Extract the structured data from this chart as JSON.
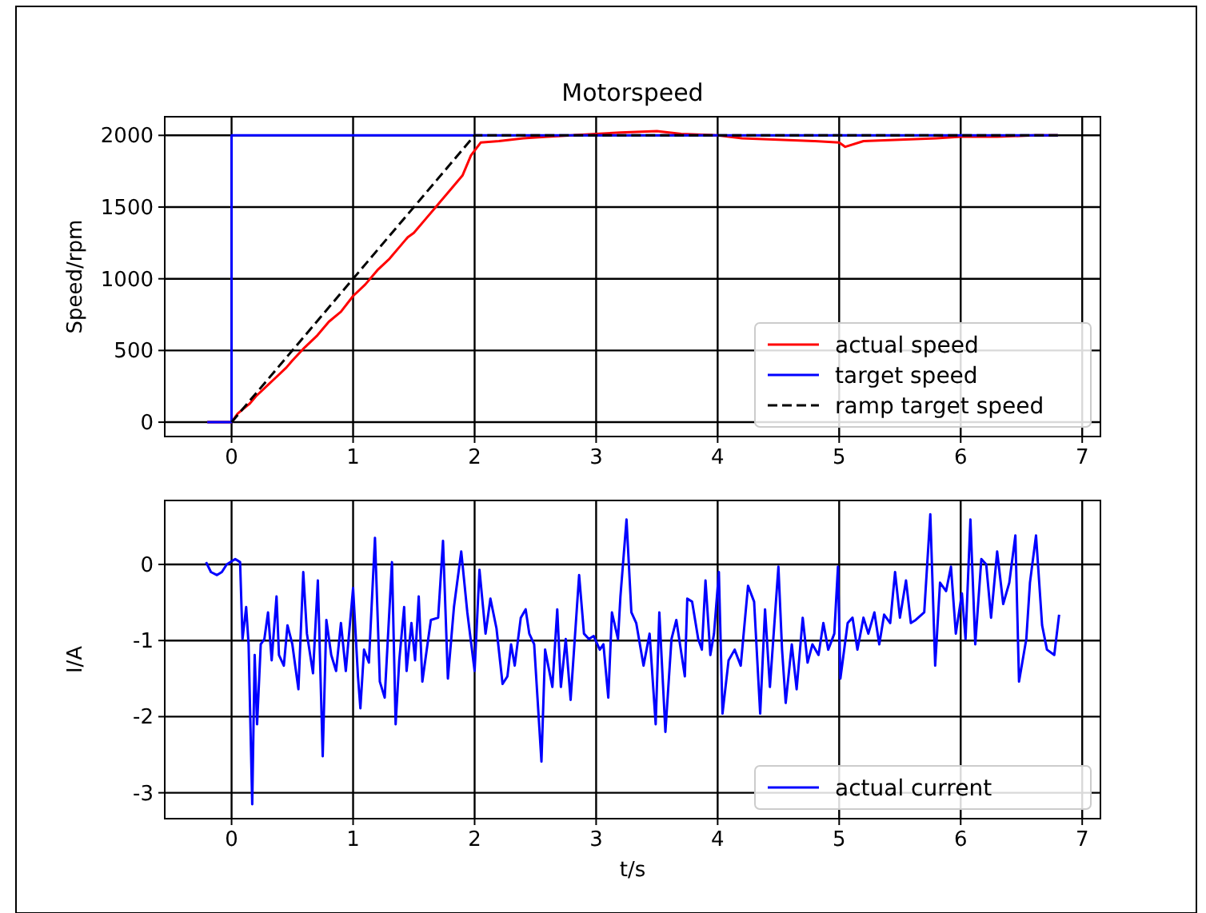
{
  "chart_data": [
    {
      "type": "line",
      "title": "Motorspeed",
      "ylabel": "Speed/rpm",
      "xlim": [
        -0.55,
        7.15
      ],
      "xticks": [
        0,
        1,
        2,
        3,
        4,
        5,
        6,
        7
      ],
      "ylim": [
        -100,
        2130
      ],
      "yticks": [
        0,
        500,
        1000,
        1500,
        2000
      ],
      "grid": true,
      "legend": "bottom right",
      "series": [
        {
          "name": "actual speed",
          "color": "#ff0000",
          "x": [
            -0.2,
            0,
            0.05,
            0.15,
            0.2,
            0.3,
            0.35,
            0.45,
            0.5,
            0.6,
            0.7,
            0.8,
            0.9,
            1.0,
            1.1,
            1.2,
            1.3,
            1.4,
            1.45,
            1.5,
            1.6,
            1.7,
            1.8,
            1.9,
            1.97,
            2.05,
            2.2,
            2.4,
            2.6,
            2.8,
            3.0,
            3.2,
            3.5,
            3.7,
            4.0,
            4.2,
            4.5,
            4.8,
            5.0,
            5.05,
            5.2,
            5.5,
            5.8,
            6.0,
            6.3,
            6.6,
            6.8
          ],
          "values": [
            0,
            0,
            60,
            130,
            180,
            260,
            300,
            380,
            430,
            520,
            600,
            700,
            770,
            880,
            960,
            1060,
            1140,
            1240,
            1290,
            1320,
            1420,
            1520,
            1620,
            1720,
            1860,
            1950,
            1960,
            1980,
            1990,
            2000,
            2010,
            2020,
            2030,
            2010,
            2000,
            1980,
            1970,
            1960,
            1950,
            1920,
            1960,
            1970,
            1980,
            1990,
            1990,
            2000,
            2000
          ]
        },
        {
          "name": "target speed",
          "color": "#0000ff",
          "x": [
            -0.2,
            0,
            0,
            6.8
          ],
          "values": [
            0,
            0,
            2000,
            2000
          ]
        },
        {
          "name": "ramp target speed",
          "color": "#000000",
          "line_style": "dashed",
          "x": [
            0,
            2,
            6.8
          ],
          "values": [
            0,
            2000,
            2000
          ]
        }
      ]
    },
    {
      "type": "line",
      "xlabel": "t/s",
      "ylabel": "I/A",
      "xlim": [
        -0.55,
        7.15
      ],
      "xticks": [
        0,
        1,
        2,
        3,
        4,
        5,
        6,
        7
      ],
      "ylim": [
        -3.34,
        0.84
      ],
      "yticks": [
        -3,
        -2,
        -1,
        0
      ],
      "grid": true,
      "legend": "bottom right",
      "series": [
        {
          "name": "actual current",
          "color": "#0000ff",
          "x": [
            -0.21,
            -0.17,
            -0.12,
            -0.08,
            -0.04,
            0.03,
            0.07,
            0.09,
            0.12,
            0.14,
            0.17,
            0.19,
            0.21,
            0.24,
            0.27,
            0.3,
            0.33,
            0.37,
            0.39,
            0.43,
            0.46,
            0.5,
            0.55,
            0.59,
            0.62,
            0.67,
            0.71,
            0.75,
            0.78,
            0.82,
            0.86,
            0.9,
            0.94,
            1.0,
            1.04,
            1.06,
            1.09,
            1.13,
            1.18,
            1.22,
            1.26,
            1.32,
            1.35,
            1.38,
            1.42,
            1.44,
            1.48,
            1.51,
            1.54,
            1.57,
            1.6,
            1.64,
            1.7,
            1.74,
            1.78,
            1.83,
            1.89,
            1.94,
            2.0,
            2.04,
            2.09,
            2.13,
            2.18,
            2.23,
            2.27,
            2.3,
            2.33,
            2.38,
            2.42,
            2.45,
            2.49,
            2.55,
            2.58,
            2.64,
            2.68,
            2.71,
            2.75,
            2.79,
            2.86,
            2.9,
            2.94,
            2.98,
            3.03,
            3.06,
            3.1,
            3.13,
            3.18,
            3.2,
            3.25,
            3.29,
            3.33,
            3.39,
            3.44,
            3.49,
            3.52,
            3.57,
            3.62,
            3.66,
            3.73,
            3.75,
            3.79,
            3.84,
            3.87,
            3.9,
            3.94,
            3.97,
            4.01,
            4.04,
            4.09,
            4.14,
            4.19,
            4.25,
            4.3,
            4.35,
            4.39,
            4.43,
            4.5,
            4.53,
            4.56,
            4.61,
            4.65,
            4.7,
            4.74,
            4.78,
            4.83,
            4.87,
            4.91,
            4.96,
            4.99,
            5.01,
            5.07,
            5.11,
            5.15,
            5.2,
            5.24,
            5.29,
            5.33,
            5.37,
            5.42,
            5.46,
            5.5,
            5.55,
            5.59,
            5.63,
            5.7,
            5.75,
            5.79,
            5.83,
            5.88,
            5.92,
            5.96,
            6.01,
            6.04,
            6.08,
            6.12,
            6.17,
            6.21,
            6.25,
            6.3,
            6.35,
            6.4,
            6.45,
            6.48,
            6.54,
            6.57,
            6.62,
            6.67,
            6.71,
            6.77,
            6.81
          ],
          "values": [
            0.03,
            -0.1,
            -0.14,
            -0.1,
            0,
            0.07,
            0.03,
            -0.98,
            -0.56,
            -1.05,
            -3.15,
            -1.19,
            -2.1,
            -1.05,
            -0.98,
            -0.63,
            -1.26,
            -0.42,
            -1.19,
            -1.33,
            -0.8,
            -1.05,
            -1.64,
            -0.1,
            -0.91,
            -1.43,
            -0.21,
            -2.52,
            -0.73,
            -1.19,
            -1.4,
            -0.77,
            -1.4,
            -0.31,
            -1.47,
            -1.89,
            -1.12,
            -1.29,
            0.35,
            -1.54,
            -1.75,
            0.03,
            -2.1,
            -1.26,
            -0.56,
            -1.4,
            -0.77,
            -1.26,
            -0.42,
            -1.54,
            -1.19,
            -0.73,
            -0.7,
            0.31,
            -1.5,
            -0.56,
            0.17,
            -0.63,
            -1.4,
            -0.07,
            -0.91,
            -0.45,
            -0.84,
            -1.57,
            -1.47,
            -1.05,
            -1.33,
            -0.7,
            -0.59,
            -0.91,
            -1.05,
            -2.59,
            -1.12,
            -1.61,
            -0.59,
            -1.61,
            -0.98,
            -1.78,
            -0.14,
            -0.91,
            -0.98,
            -0.94,
            -1.12,
            -1.05,
            -1.75,
            -0.63,
            -0.98,
            -0.42,
            0.59,
            -0.63,
            -0.77,
            -1.33,
            -0.91,
            -2.1,
            -0.63,
            -2.2,
            -0.98,
            -0.73,
            -1.47,
            -0.45,
            -0.49,
            -0.98,
            -1.12,
            -0.21,
            -1.19,
            -0.91,
            -0.1,
            -1.96,
            -1.26,
            -1.12,
            -1.33,
            -0.28,
            -0.49,
            -1.96,
            -0.59,
            -1.61,
            -0.03,
            -1.12,
            -1.82,
            -1.05,
            -1.64,
            -0.7,
            -1.29,
            -1.05,
            -1.19,
            -0.77,
            -1.12,
            -0.91,
            -0.03,
            -1.5,
            -0.77,
            -0.7,
            -1.12,
            -0.7,
            -0.91,
            -0.63,
            -1.05,
            -0.66,
            -0.77,
            -0.1,
            -0.7,
            -0.21,
            -0.77,
            -0.73,
            -0.63,
            0.66,
            -1.33,
            -0.24,
            -0.35,
            -0.03,
            -0.91,
            -0.38,
            -0.98,
            0.59,
            -1.05,
            0.07,
            0,
            -0.7,
            0.17,
            -0.52,
            -0.24,
            0.38,
            -1.54,
            -0.98,
            -0.24,
            0.38,
            -0.8,
            -1.12,
            -1.19,
            -0.66
          ]
        }
      ]
    }
  ]
}
